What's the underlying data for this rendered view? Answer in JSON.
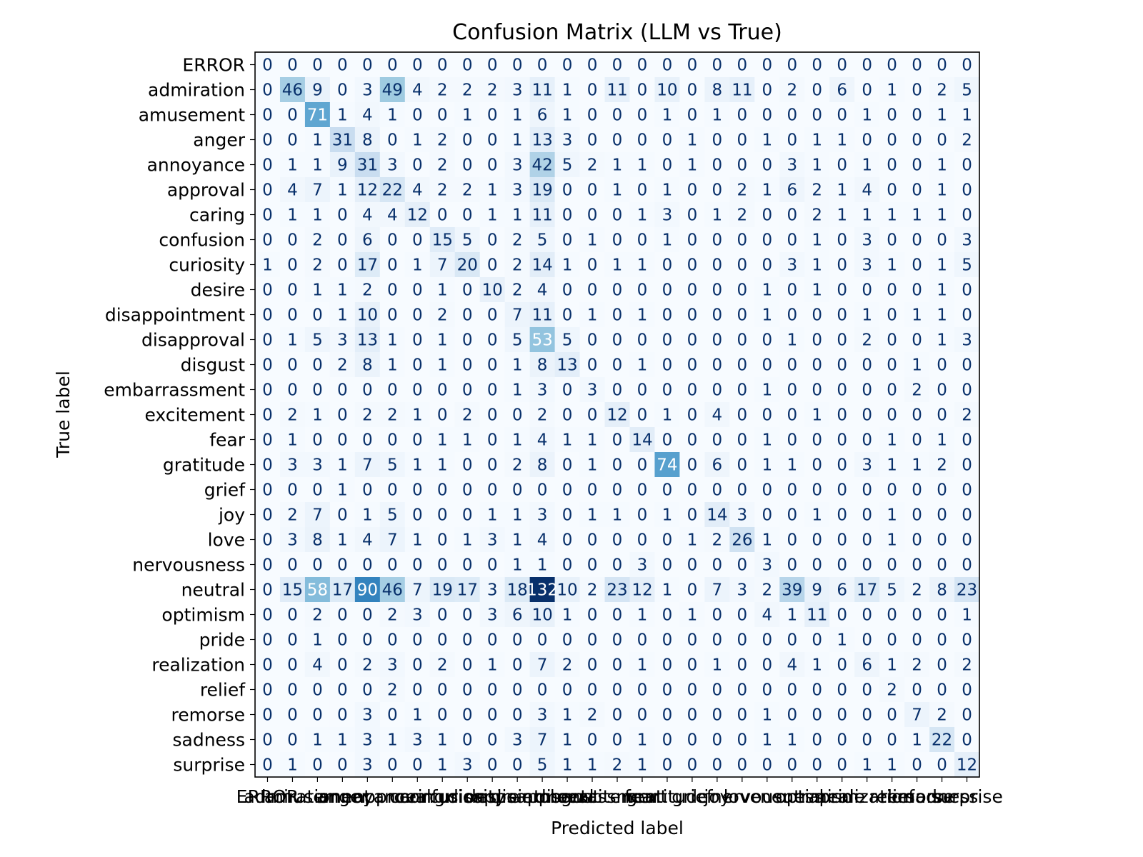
{
  "chart_data": {
    "type": "heatmap",
    "title": "Confusion Matrix (LLM vs True)",
    "xlabel": "Predicted label",
    "ylabel": "True label",
    "labels": [
      "ERROR",
      "admiration",
      "amusement",
      "anger",
      "annoyance",
      "approval",
      "caring",
      "confusion",
      "curiosity",
      "desire",
      "disappointment",
      "disapproval",
      "disgust",
      "embarrassment",
      "excitement",
      "fear",
      "gratitude",
      "grief",
      "joy",
      "love",
      "nervousness",
      "neutral",
      "optimism",
      "pride",
      "realization",
      "relief",
      "remorse",
      "sadness",
      "surprise"
    ],
    "matrix": [
      [
        0,
        0,
        0,
        0,
        0,
        0,
        0,
        0,
        0,
        0,
        0,
        0,
        0,
        0,
        0,
        0,
        0,
        0,
        0,
        0,
        0,
        0,
        0,
        0,
        0,
        0,
        0,
        0,
        0
      ],
      [
        0,
        46,
        9,
        0,
        3,
        49,
        4,
        2,
        2,
        2,
        3,
        11,
        1,
        0,
        11,
        0,
        10,
        0,
        8,
        11,
        0,
        2,
        0,
        6,
        0,
        1,
        0,
        2,
        5
      ],
      [
        0,
        0,
        71,
        1,
        4,
        1,
        0,
        0,
        1,
        0,
        1,
        6,
        1,
        0,
        0,
        0,
        1,
        0,
        1,
        0,
        0,
        0,
        0,
        0,
        1,
        0,
        0,
        1,
        1
      ],
      [
        0,
        0,
        1,
        31,
        8,
        0,
        1,
        2,
        0,
        0,
        1,
        13,
        3,
        0,
        0,
        0,
        0,
        1,
        0,
        0,
        1,
        0,
        1,
        1,
        0,
        0,
        0,
        0,
        2
      ],
      [
        0,
        1,
        1,
        9,
        31,
        3,
        0,
        2,
        0,
        0,
        3,
        42,
        5,
        2,
        1,
        1,
        0,
        1,
        0,
        0,
        0,
        3,
        1,
        0,
        1,
        0,
        0,
        1,
        0
      ],
      [
        0,
        4,
        7,
        1,
        12,
        22,
        4,
        2,
        2,
        1,
        3,
        19,
        0,
        0,
        1,
        0,
        1,
        0,
        0,
        2,
        1,
        6,
        2,
        1,
        4,
        0,
        0,
        1,
        0
      ],
      [
        0,
        1,
        1,
        0,
        4,
        4,
        12,
        0,
        0,
        1,
        1,
        11,
        0,
        0,
        0,
        1,
        3,
        0,
        1,
        2,
        0,
        0,
        2,
        1,
        1,
        1,
        1,
        1,
        0
      ],
      [
        0,
        0,
        2,
        0,
        6,
        0,
        0,
        15,
        5,
        0,
        2,
        5,
        0,
        1,
        0,
        0,
        1,
        0,
        0,
        0,
        0,
        0,
        1,
        0,
        3,
        0,
        0,
        0,
        3
      ],
      [
        1,
        0,
        2,
        0,
        17,
        0,
        1,
        7,
        20,
        0,
        2,
        14,
        1,
        0,
        1,
        1,
        0,
        0,
        0,
        0,
        0,
        3,
        1,
        0,
        3,
        1,
        0,
        1,
        5
      ],
      [
        0,
        0,
        1,
        1,
        2,
        0,
        0,
        1,
        0,
        10,
        2,
        4,
        0,
        0,
        0,
        0,
        0,
        0,
        0,
        0,
        1,
        0,
        1,
        0,
        0,
        0,
        0,
        1,
        0
      ],
      [
        0,
        0,
        0,
        1,
        10,
        0,
        0,
        2,
        0,
        0,
        7,
        11,
        0,
        1,
        0,
        1,
        0,
        0,
        0,
        0,
        1,
        0,
        0,
        0,
        1,
        0,
        1,
        1,
        0
      ],
      [
        0,
        1,
        5,
        3,
        13,
        1,
        0,
        1,
        0,
        0,
        5,
        53,
        5,
        0,
        0,
        0,
        0,
        0,
        0,
        0,
        0,
        1,
        0,
        0,
        2,
        0,
        0,
        1,
        3
      ],
      [
        0,
        0,
        0,
        2,
        8,
        1,
        0,
        1,
        0,
        0,
        1,
        8,
        13,
        0,
        0,
        1,
        0,
        0,
        0,
        0,
        0,
        0,
        0,
        0,
        0,
        0,
        1,
        0,
        0
      ],
      [
        0,
        0,
        0,
        0,
        0,
        0,
        0,
        0,
        0,
        0,
        1,
        3,
        0,
        3,
        0,
        0,
        0,
        0,
        0,
        0,
        1,
        0,
        0,
        0,
        0,
        0,
        2,
        0,
        0
      ],
      [
        0,
        2,
        1,
        0,
        2,
        2,
        1,
        0,
        2,
        0,
        0,
        2,
        0,
        0,
        12,
        0,
        1,
        0,
        4,
        0,
        0,
        0,
        1,
        0,
        0,
        0,
        0,
        0,
        2
      ],
      [
        0,
        1,
        0,
        0,
        0,
        0,
        0,
        1,
        1,
        0,
        1,
        4,
        1,
        1,
        0,
        14,
        0,
        0,
        0,
        0,
        1,
        0,
        0,
        0,
        0,
        1,
        0,
        1,
        0
      ],
      [
        0,
        3,
        3,
        1,
        7,
        5,
        1,
        1,
        0,
        0,
        2,
        8,
        0,
        1,
        0,
        0,
        74,
        0,
        6,
        0,
        1,
        1,
        0,
        0,
        3,
        1,
        1,
        2,
        0
      ],
      [
        0,
        0,
        0,
        1,
        0,
        0,
        0,
        0,
        0,
        0,
        0,
        0,
        0,
        0,
        0,
        0,
        0,
        0,
        0,
        0,
        0,
        0,
        0,
        0,
        0,
        0,
        0,
        0,
        0
      ],
      [
        0,
        2,
        7,
        0,
        1,
        5,
        0,
        0,
        0,
        1,
        1,
        3,
        0,
        1,
        1,
        0,
        1,
        0,
        14,
        3,
        0,
        0,
        1,
        0,
        0,
        1,
        0,
        0,
        0
      ],
      [
        0,
        3,
        8,
        1,
        4,
        7,
        1,
        0,
        1,
        3,
        1,
        4,
        0,
        0,
        0,
        0,
        0,
        1,
        2,
        26,
        1,
        0,
        0,
        0,
        0,
        1,
        0,
        0,
        0
      ],
      [
        0,
        0,
        0,
        0,
        0,
        0,
        0,
        0,
        0,
        0,
        1,
        1,
        0,
        0,
        0,
        3,
        0,
        0,
        0,
        0,
        3,
        0,
        0,
        0,
        0,
        0,
        0,
        0,
        0
      ],
      [
        0,
        15,
        58,
        17,
        90,
        46,
        7,
        19,
        17,
        3,
        18,
        132,
        10,
        2,
        23,
        12,
        1,
        0,
        7,
        3,
        2,
        39,
        9,
        6,
        17,
        5,
        2,
        8,
        23
      ],
      [
        0,
        0,
        2,
        0,
        0,
        2,
        3,
        0,
        0,
        3,
        6,
        10,
        1,
        0,
        0,
        1,
        0,
        1,
        0,
        0,
        4,
        1,
        11,
        0,
        0,
        0,
        0,
        0,
        1
      ],
      [
        0,
        0,
        1,
        0,
        0,
        0,
        0,
        0,
        0,
        0,
        0,
        0,
        0,
        0,
        0,
        0,
        0,
        0,
        0,
        0,
        0,
        0,
        0,
        1,
        0,
        0,
        0,
        0,
        0
      ],
      [
        0,
        0,
        4,
        0,
        2,
        3,
        0,
        2,
        0,
        1,
        0,
        7,
        2,
        0,
        0,
        1,
        0,
        0,
        1,
        0,
        0,
        4,
        1,
        0,
        6,
        1,
        2,
        0,
        2
      ],
      [
        0,
        0,
        0,
        0,
        0,
        2,
        0,
        0,
        0,
        0,
        0,
        0,
        0,
        0,
        0,
        0,
        0,
        0,
        0,
        0,
        0,
        0,
        0,
        0,
        0,
        2,
        0,
        0,
        0
      ],
      [
        0,
        0,
        0,
        0,
        3,
        0,
        1,
        0,
        0,
        0,
        0,
        3,
        1,
        2,
        0,
        0,
        0,
        0,
        0,
        0,
        1,
        0,
        0,
        0,
        0,
        0,
        7,
        2,
        0
      ],
      [
        0,
        0,
        1,
        1,
        3,
        1,
        3,
        1,
        0,
        0,
        3,
        7,
        1,
        0,
        0,
        1,
        0,
        0,
        0,
        0,
        1,
        1,
        0,
        0,
        0,
        0,
        1,
        22,
        0
      ],
      [
        0,
        1,
        0,
        0,
        3,
        0,
        0,
        1,
        3,
        0,
        0,
        5,
        1,
        1,
        2,
        1,
        0,
        0,
        0,
        0,
        0,
        0,
        0,
        0,
        1,
        1,
        0,
        0,
        12
      ]
    ],
    "colormap": "Blues",
    "vmin": 0,
    "vmax": 132,
    "grid": false,
    "legend": "none"
  }
}
